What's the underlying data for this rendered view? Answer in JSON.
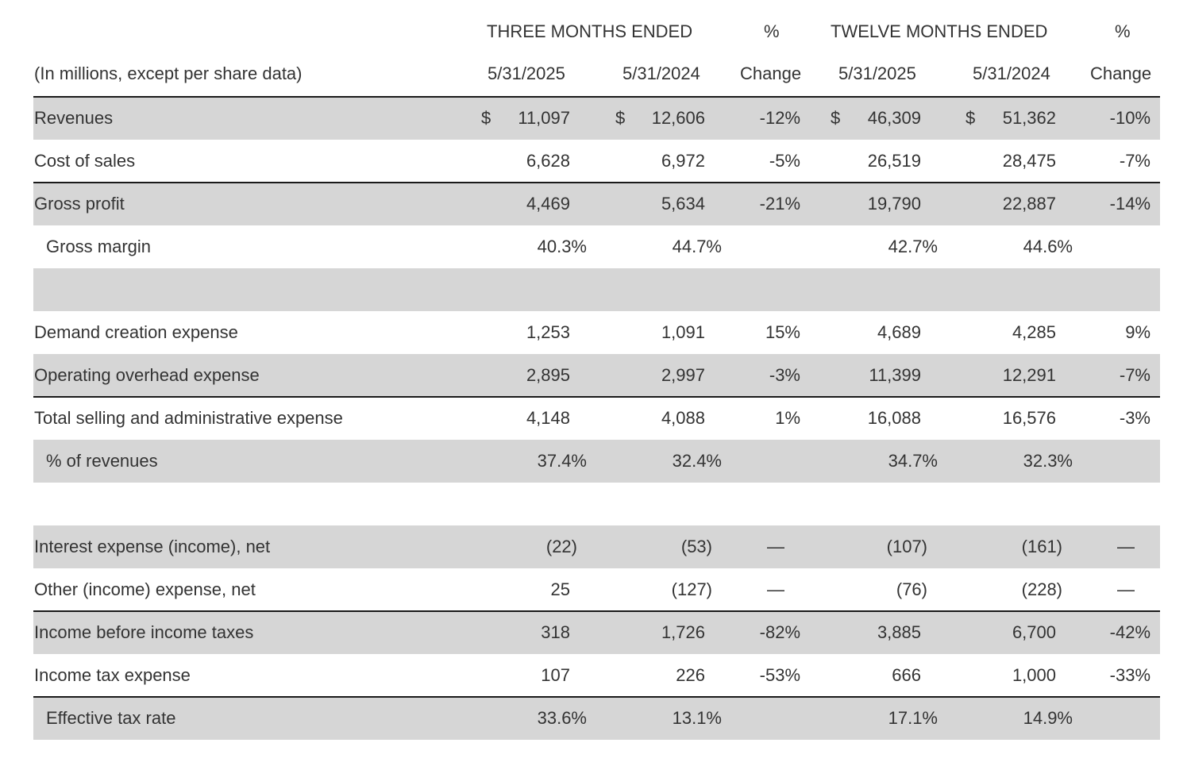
{
  "header": {
    "three_months": "THREE MONTHS ENDED",
    "pct1": "%",
    "twelve_months": "TWELVE MONTHS ENDED",
    "pct2": "%",
    "units": "(In millions, except per share data)",
    "q_2025": "5/31/2025",
    "q_2024": "5/31/2024",
    "change1": "Change",
    "y_2025": "5/31/2025",
    "y_2024": "5/31/2024",
    "change2": "Change"
  },
  "rows": [
    {
      "label": "Revenues",
      "q25": "11,097",
      "q24": "12,606",
      "qchg": "-12%",
      "y25": "46,309",
      "y24": "51,362",
      "ychg": "-10%",
      "dollar": "$"
    },
    {
      "label": "Cost of sales",
      "q25": "6,628",
      "q24": "6,972",
      "qchg": "-5%",
      "y25": "26,519",
      "y24": "28,475",
      "ychg": "-7%"
    },
    {
      "label": "Gross profit",
      "q25": "4,469",
      "q24": "5,634",
      "qchg": "-21%",
      "y25": "19,790",
      "y24": "22,887",
      "ychg": "-14%"
    },
    {
      "label": "Gross margin",
      "q25": "40.3%",
      "q24": "44.7%",
      "qchg": "",
      "y25": "42.7%",
      "y24": "44.6%",
      "ychg": ""
    },
    {
      "label": "",
      "q25": "",
      "q24": "",
      "qchg": "",
      "y25": "",
      "y24": "",
      "ychg": ""
    },
    {
      "label": "Demand creation expense",
      "q25": "1,253",
      "q24": "1,091",
      "qchg": "15%",
      "y25": "4,689",
      "y24": "4,285",
      "ychg": "9%"
    },
    {
      "label": "Operating overhead expense",
      "q25": "2,895",
      "q24": "2,997",
      "qchg": "-3%",
      "y25": "11,399",
      "y24": "12,291",
      "ychg": "-7%"
    },
    {
      "label": "Total selling and administrative expense",
      "q25": "4,148",
      "q24": "4,088",
      "qchg": "1%",
      "y25": "16,088",
      "y24": "16,576",
      "ychg": "-3%"
    },
    {
      "label": "% of revenues",
      "q25": "37.4%",
      "q24": "32.4%",
      "qchg": "",
      "y25": "34.7%",
      "y24": "32.3%",
      "ychg": ""
    },
    {
      "label": "",
      "q25": "",
      "q24": "",
      "qchg": "",
      "y25": "",
      "y24": "",
      "ychg": ""
    },
    {
      "label": "Interest expense (income), net",
      "q25": "(22)",
      "q24": "(53)",
      "qchg": "—",
      "y25": "(107)",
      "y24": "(161)",
      "ychg": "—"
    },
    {
      "label": "Other (income) expense, net",
      "q25": "25",
      "q24": "(127)",
      "qchg": "—",
      "y25": "(76)",
      "y24": "(228)",
      "ychg": "—"
    },
    {
      "label": "Income before income taxes",
      "q25": "318",
      "q24": "1,726",
      "qchg": "-82%",
      "y25": "3,885",
      "y24": "6,700",
      "ychg": "-42%"
    },
    {
      "label": "Income tax expense",
      "q25": "107",
      "q24": "226",
      "qchg": "-53%",
      "y25": "666",
      "y24": "1,000",
      "ychg": "-33%"
    },
    {
      "label": "Effective tax rate",
      "q25": "33.6%",
      "q24": "13.1%",
      "qchg": "",
      "y25": "17.1%",
      "y24": "14.9%",
      "ychg": ""
    }
  ]
}
